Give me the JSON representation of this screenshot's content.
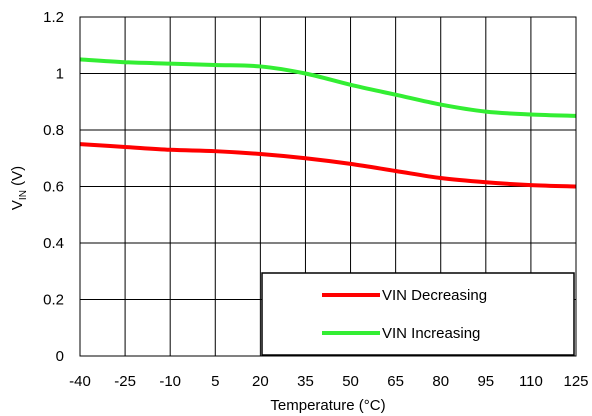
{
  "chart_data": {
    "type": "line",
    "title": "",
    "xlabel": "Temperature (°C)",
    "ylabel": {
      "main": "V",
      "sub": "IN",
      "suffix": " (V)"
    },
    "xlim": [
      -40,
      125
    ],
    "ylim": [
      0,
      1.2
    ],
    "x_ticks": [
      "-40",
      "-25",
      "-10",
      "5",
      "20",
      "35",
      "50",
      "65",
      "80",
      "95",
      "110",
      "125"
    ],
    "y_ticks": [
      "0",
      "0.2",
      "0.4",
      "0.6",
      "0.8",
      "1",
      "1.2"
    ],
    "grid": true,
    "legend_position": "bottom-right",
    "x": [
      -40,
      -25,
      -10,
      5,
      20,
      35,
      50,
      65,
      80,
      95,
      110,
      125
    ],
    "series": [
      {
        "name": "VIN Decreasing",
        "color": "#ff0000",
        "values": [
          0.75,
          0.74,
          0.73,
          0.725,
          0.715,
          0.7,
          0.68,
          0.655,
          0.63,
          0.615,
          0.605,
          0.6
        ]
      },
      {
        "name": "VIN Increasing",
        "color": "#33ee33",
        "values": [
          1.05,
          1.04,
          1.035,
          1.03,
          1.025,
          1.0,
          0.96,
          0.925,
          0.89,
          0.865,
          0.855,
          0.85
        ]
      }
    ]
  }
}
